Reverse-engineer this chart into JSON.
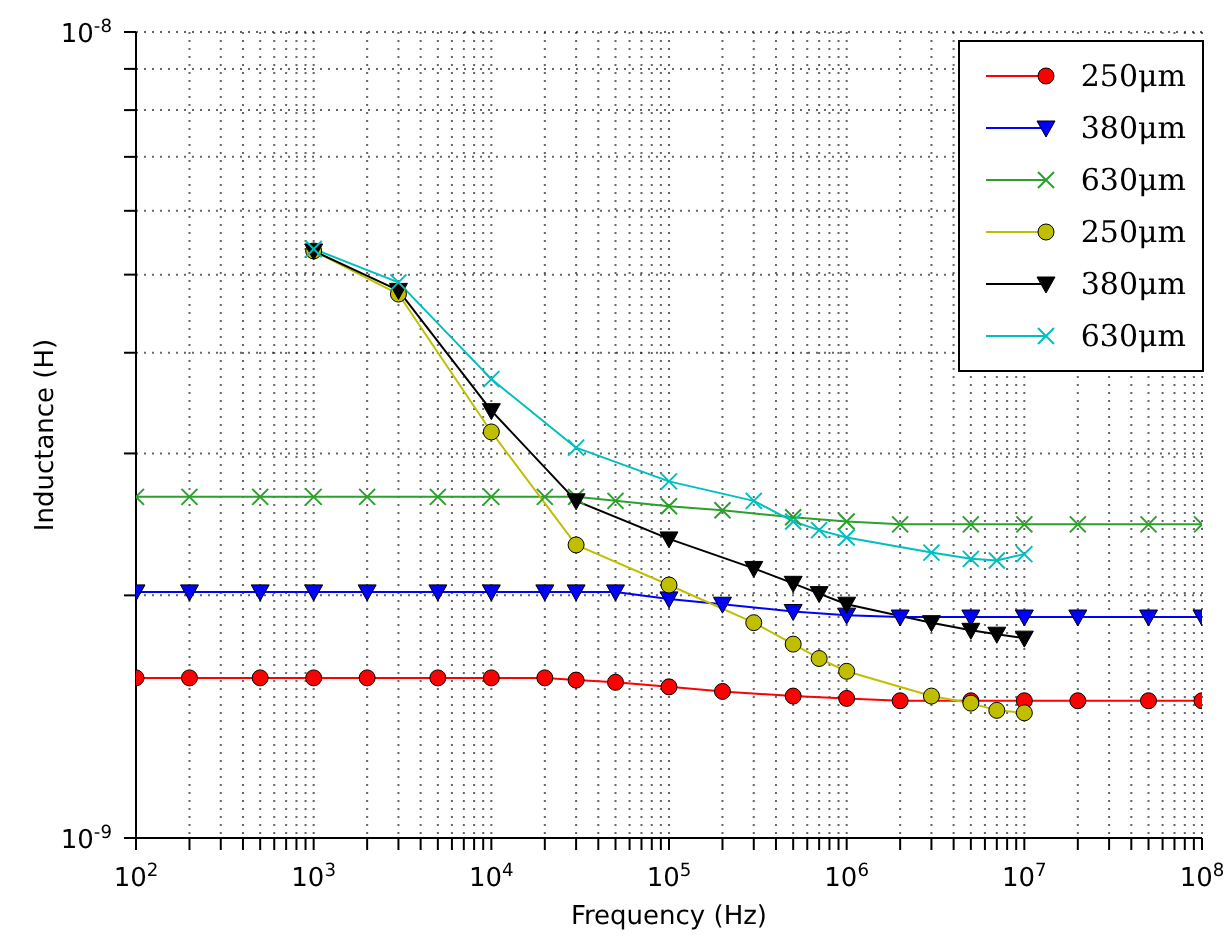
{
  "chart_data": {
    "type": "line",
    "xlabel": "Frequency (Hz)",
    "ylabel": "Inductance (H)",
    "log": "xy",
    "grid": true,
    "legend": "top right",
    "xlim": [
      100,
      100000000
    ],
    "ylim": [
      1e-09,
      1e-08
    ],
    "xticks": [
      {
        "value": 100,
        "label": "10$^{2}$"
      },
      {
        "value": 1000,
        "label": "10$^{3}$"
      },
      {
        "value": 10000,
        "label": "10$^{4}$"
      },
      {
        "value": 100000,
        "label": "10$^{5}$"
      },
      {
        "value": 1000000,
        "label": "10$^{6}$"
      },
      {
        "value": 10000000,
        "label": "10$^{7}$"
      },
      {
        "value": 100000000,
        "label": "10$^{8}$"
      },
      {
        "value": 200,
        "label": null
      },
      {
        "value": 300,
        "label": null
      },
      {
        "value": 400,
        "label": null
      },
      {
        "value": 500,
        "label": null
      },
      {
        "value": 600,
        "label": null
      },
      {
        "value": 700,
        "label": null
      },
      {
        "value": 800,
        "label": null
      },
      {
        "value": 900,
        "label": null
      },
      {
        "value": 2000,
        "label": null
      },
      {
        "value": 3000,
        "label": null
      },
      {
        "value": 4000,
        "label": null
      },
      {
        "value": 5000,
        "label": null
      },
      {
        "value": 6000,
        "label": null
      },
      {
        "value": 7000,
        "label": null
      },
      {
        "value": 8000,
        "label": null
      },
      {
        "value": 9000,
        "label": null
      },
      {
        "value": 20000,
        "label": null
      },
      {
        "value": 30000,
        "label": null
      },
      {
        "value": 40000,
        "label": null
      },
      {
        "value": 50000,
        "label": null
      },
      {
        "value": 60000,
        "label": null
      },
      {
        "value": 70000,
        "label": null
      },
      {
        "value": 80000,
        "label": null
      },
      {
        "value": 90000,
        "label": null
      },
      {
        "value": 200000,
        "label": null
      },
      {
        "value": 300000,
        "label": null
      },
      {
        "value": 400000,
        "label": null
      },
      {
        "value": 500000,
        "label": null
      },
      {
        "value": 600000,
        "label": null
      },
      {
        "value": 700000,
        "label": null
      },
      {
        "value": 800000,
        "label": null
      },
      {
        "value": 900000,
        "label": null
      },
      {
        "value": 2000000,
        "label": null
      },
      {
        "value": 3000000,
        "label": null
      },
      {
        "value": 4000000,
        "label": null
      },
      {
        "value": 5000000,
        "label": null
      },
      {
        "value": 6000000,
        "label": null
      },
      {
        "value": 7000000,
        "label": null
      },
      {
        "value": 8000000,
        "label": null
      },
      {
        "value": 9000000,
        "label": null
      },
      {
        "value": 20000000,
        "label": null
      },
      {
        "value": 30000000,
        "label": null
      },
      {
        "value": 40000000,
        "label": null
      },
      {
        "value": 50000000,
        "label": null
      },
      {
        "value": 60000000,
        "label": null
      },
      {
        "value": 70000000,
        "label": null
      },
      {
        "value": 80000000,
        "label": null
      },
      {
        "value": 90000000,
        "label": null
      }
    ],
    "yticks": [
      {
        "value": 1e-09,
        "label": "10$^{-9}$"
      },
      {
        "value": 1e-08,
        "label": "10$^{-8}$"
      },
      {
        "value": 2e-09,
        "label": null
      },
      {
        "value": 3e-09,
        "label": null
      },
      {
        "value": 4e-09,
        "label": null
      },
      {
        "value": 5e-09,
        "label": null
      },
      {
        "value": 6e-09,
        "label": null
      },
      {
        "value": 7e-09,
        "label": null
      },
      {
        "value": 8e-09,
        "label": null
      },
      {
        "value": 9e-09,
        "label": null
      }
    ],
    "series": [
      {
        "name": "250μm",
        "color": "#ff0000",
        "marker": "circle",
        "x": [
          100,
          200,
          500,
          1000,
          2000,
          5000,
          10000,
          20000,
          30000,
          50000,
          100000,
          200000,
          500000,
          1000000,
          2000000,
          5000000,
          10000000,
          20000000,
          50000000,
          100000000
        ],
        "values": [
          1.58e-09,
          1.58e-09,
          1.58e-09,
          1.58e-09,
          1.58e-09,
          1.58e-09,
          1.58e-09,
          1.58e-09,
          1.57e-09,
          1.56e-09,
          1.54e-09,
          1.52e-09,
          1.5e-09,
          1.49e-09,
          1.48e-09,
          1.48e-09,
          1.48e-09,
          1.48e-09,
          1.48e-09,
          1.48e-09
        ]
      },
      {
        "name": "380μm",
        "color": "#0000ff",
        "marker": "triangle",
        "x": [
          100,
          200,
          500,
          1000,
          2000,
          5000,
          10000,
          20000,
          30000,
          50000,
          100000,
          200000,
          500000,
          1000000,
          2000000,
          5000000,
          10000000,
          20000000,
          50000000,
          100000000
        ],
        "values": [
          2.02e-09,
          2.02e-09,
          2.02e-09,
          2.02e-09,
          2.02e-09,
          2.02e-09,
          2.02e-09,
          2.02e-09,
          2.02e-09,
          2.02e-09,
          1.98e-09,
          1.95e-09,
          1.91e-09,
          1.89e-09,
          1.88e-09,
          1.88e-09,
          1.88e-09,
          1.88e-09,
          1.88e-09,
          1.88e-09
        ]
      },
      {
        "name": "630μm",
        "color": "#2ca02c",
        "marker": "cross",
        "x": [
          100,
          200,
          500,
          1000,
          2000,
          5000,
          10000,
          20000,
          30000,
          50000,
          100000,
          200000,
          500000,
          1000000,
          2000000,
          5000000,
          10000000,
          20000000,
          50000000,
          100000000
        ],
        "values": [
          2.65e-09,
          2.65e-09,
          2.65e-09,
          2.65e-09,
          2.65e-09,
          2.65e-09,
          2.65e-09,
          2.65e-09,
          2.65e-09,
          2.62e-09,
          2.58e-09,
          2.55e-09,
          2.5e-09,
          2.47e-09,
          2.45e-09,
          2.45e-09,
          2.45e-09,
          2.45e-09,
          2.45e-09,
          2.45e-09
        ]
      },
      {
        "name": "250μm",
        "color": "#bfbf00",
        "marker": "circle",
        "x": [
          1000,
          3000,
          10000,
          30000,
          100000,
          300000,
          500000,
          700000,
          1000000,
          3000000,
          5000000,
          7000000,
          10000000
        ],
        "values": [
          5.35e-09,
          4.73e-09,
          3.19e-09,
          2.31e-09,
          2.06e-09,
          1.85e-09,
          1.74e-09,
          1.67e-09,
          1.61e-09,
          1.5e-09,
          1.47e-09,
          1.44e-09,
          1.43e-09
        ]
      },
      {
        "name": "380μm",
        "color": "#000000",
        "marker": "triangle",
        "x": [
          1000,
          3000,
          10000,
          30000,
          100000,
          300000,
          500000,
          700000,
          1000000,
          3000000,
          5000000,
          7000000,
          10000000
        ],
        "values": [
          5.35e-09,
          4.78e-09,
          3.39e-09,
          2.62e-09,
          2.35e-09,
          2.16e-09,
          2.07e-09,
          2.01e-09,
          1.95e-09,
          1.85e-09,
          1.81e-09,
          1.79e-09,
          1.77e-09
        ]
      },
      {
        "name": "630μm",
        "color": "#00bfbf",
        "marker": "cross",
        "x": [
          1000,
          3000,
          10000,
          30000,
          100000,
          300000,
          500000,
          700000,
          1000000,
          3000000,
          5000000,
          7000000,
          10000000
        ],
        "values": [
          5.38e-09,
          4.89e-09,
          3.71e-09,
          3.05e-09,
          2.77e-09,
          2.62e-09,
          2.47e-09,
          2.41e-09,
          2.36e-09,
          2.26e-09,
          2.22e-09,
          2.21e-09,
          2.25e-09
        ]
      }
    ]
  }
}
